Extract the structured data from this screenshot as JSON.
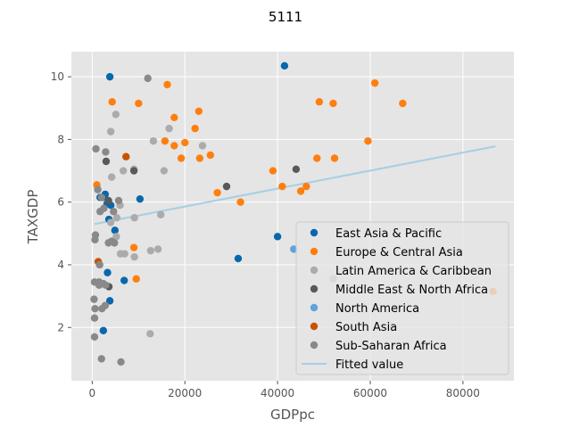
{
  "chart_data": {
    "type": "scatter",
    "title": "5111",
    "xlabel": "GDPpc",
    "ylabel": "TAXGDP",
    "xlim": [
      -4500,
      91000
    ],
    "ylim": [
      0.3,
      10.8
    ],
    "xticks": [
      0,
      20000,
      40000,
      60000,
      80000
    ],
    "xtick_labels": [
      "0",
      "20000",
      "40000",
      "60000",
      "80000"
    ],
    "yticks": [
      2,
      4,
      6,
      8,
      10
    ],
    "ytick_labels": [
      "2",
      "4",
      "6",
      "8",
      "10"
    ],
    "grid": true,
    "legend_position": "lower-right",
    "series": [
      {
        "name": "East Asia & Pacific",
        "color": "#0868ac",
        "points": [
          [
            3800,
            10.0
          ],
          [
            41500,
            10.35
          ],
          [
            1700,
            6.15
          ],
          [
            2800,
            6.25
          ],
          [
            2200,
            6.15
          ],
          [
            3200,
            5.95
          ],
          [
            4000,
            5.9
          ],
          [
            3600,
            5.45
          ],
          [
            10300,
            6.1
          ],
          [
            4900,
            5.1
          ],
          [
            3300,
            3.75
          ],
          [
            6900,
            3.5
          ],
          [
            3800,
            2.85
          ],
          [
            2400,
            1.9
          ],
          [
            40000,
            4.9
          ],
          [
            31500,
            4.2
          ]
        ]
      },
      {
        "name": "Europe & Central Asia",
        "color": "#ff7f0e",
        "points": [
          [
            4300,
            9.2
          ],
          [
            10000,
            9.15
          ],
          [
            16200,
            9.75
          ],
          [
            17700,
            8.7
          ],
          [
            23000,
            8.9
          ],
          [
            22200,
            8.35
          ],
          [
            15700,
            7.95
          ],
          [
            17700,
            7.8
          ],
          [
            20000,
            7.9
          ],
          [
            19200,
            7.4
          ],
          [
            23200,
            7.4
          ],
          [
            25500,
            7.5
          ],
          [
            27000,
            6.3
          ],
          [
            32000,
            6.0
          ],
          [
            39000,
            7.0
          ],
          [
            41000,
            6.5
          ],
          [
            45000,
            6.35
          ],
          [
            46200,
            6.5
          ],
          [
            48500,
            7.4
          ],
          [
            49000,
            9.2
          ],
          [
            52000,
            9.15
          ],
          [
            52300,
            7.4
          ],
          [
            59500,
            7.95
          ],
          [
            61000,
            9.8
          ],
          [
            67000,
            9.15
          ],
          [
            9000,
            4.55
          ],
          [
            9500,
            3.55
          ],
          [
            1000,
            6.55
          ],
          [
            86500,
            3.15
          ]
        ]
      },
      {
        "name": "Latin America & Caribbean",
        "color": "#ababab",
        "points": [
          [
            5100,
            8.8
          ],
          [
            4000,
            8.25
          ],
          [
            16600,
            8.35
          ],
          [
            13200,
            7.95
          ],
          [
            23800,
            7.8
          ],
          [
            6700,
            7.0
          ],
          [
            4200,
            6.8
          ],
          [
            9000,
            7.05
          ],
          [
            15500,
            7.0
          ],
          [
            6000,
            5.9
          ],
          [
            5300,
            5.5
          ],
          [
            9100,
            5.5
          ],
          [
            14800,
            5.6
          ],
          [
            4000,
            5.35
          ],
          [
            5200,
            4.9
          ],
          [
            6100,
            4.35
          ],
          [
            7000,
            4.35
          ],
          [
            9100,
            4.25
          ],
          [
            12600,
            4.45
          ],
          [
            14200,
            4.5
          ],
          [
            52000,
            3.55
          ],
          [
            12500,
            1.8
          ]
        ]
      },
      {
        "name": "Middle East & North Africa",
        "color": "#595959",
        "points": [
          [
            3000,
            7.3
          ],
          [
            9000,
            7.0
          ],
          [
            29000,
            6.5
          ],
          [
            44000,
            7.05
          ],
          [
            3500,
            6.05
          ],
          [
            3600,
            3.3
          ]
        ]
      },
      {
        "name": "North America",
        "color": "#5fa2dd",
        "points": [
          [
            43500,
            4.5
          ]
        ]
      },
      {
        "name": "South Asia",
        "color": "#c85200",
        "points": [
          [
            7300,
            7.45
          ],
          [
            1300,
            4.1
          ]
        ]
      },
      {
        "name": "Sub-Saharan Africa",
        "color": "#898989",
        "points": [
          [
            12000,
            9.95
          ],
          [
            800,
            7.7
          ],
          [
            2900,
            7.6
          ],
          [
            2000,
            6.15
          ],
          [
            5700,
            6.05
          ],
          [
            1700,
            5.7
          ],
          [
            2500,
            5.8
          ],
          [
            3500,
            4.7
          ],
          [
            4200,
            4.75
          ],
          [
            4800,
            4.7
          ],
          [
            700,
            4.95
          ],
          [
            600,
            4.8
          ],
          [
            1600,
            4.0
          ],
          [
            500,
            3.45
          ],
          [
            1500,
            3.45
          ],
          [
            2400,
            3.4
          ],
          [
            2900,
            3.35
          ],
          [
            400,
            2.9
          ],
          [
            2100,
            2.6
          ],
          [
            2800,
            2.7
          ],
          [
            600,
            2.6
          ],
          [
            500,
            2.3
          ],
          [
            500,
            1.7
          ],
          [
            2000,
            1.0
          ],
          [
            6200,
            0.9
          ],
          [
            1500,
            3.35
          ],
          [
            4600,
            5.7
          ],
          [
            1200,
            6.4
          ]
        ]
      }
    ],
    "fitted_line": {
      "name": "Fitted value",
      "color": "#a6cee3",
      "x": [
        500,
        87000
      ],
      "y": [
        5.3,
        7.78
      ]
    }
  }
}
